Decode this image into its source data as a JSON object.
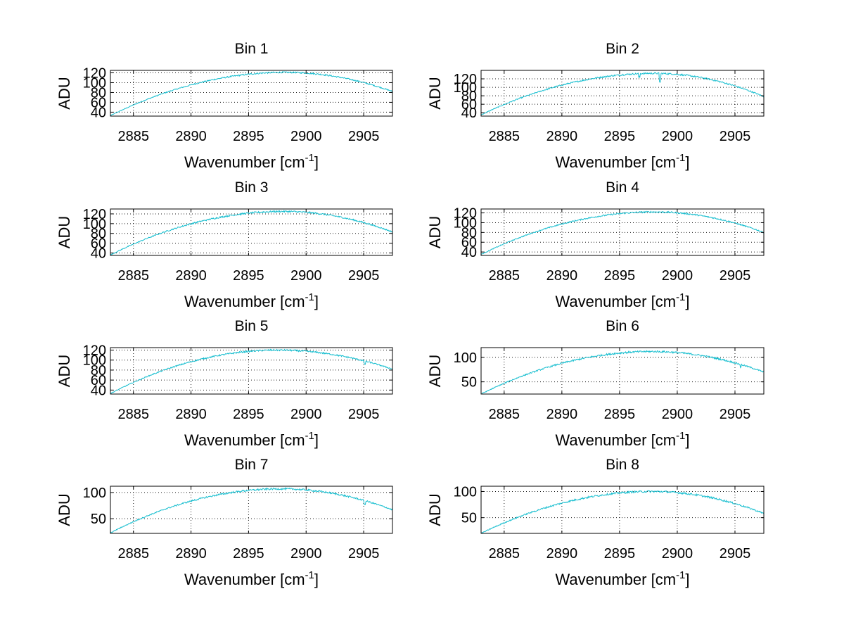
{
  "figure": {
    "xlabel": "Wavenumber [cm",
    "xlabel_sup": "-1",
    "xlabel_close": "]",
    "ylabel": "ADU",
    "line_color": "#17becf"
  },
  "chart_data": [
    {
      "type": "line",
      "title": "Bin 1",
      "xlim": [
        2883,
        2907.5
      ],
      "ylim": [
        32,
        125
      ],
      "xticks": [
        2885,
        2890,
        2895,
        2900,
        2905
      ],
      "yticks": [
        40,
        60,
        80,
        100,
        120
      ],
      "series": [
        {
          "name": "Bin 1",
          "peak_x": 2898.2,
          "peak_y": 121,
          "start_y": 33,
          "end_y": 82,
          "noise": 1.5,
          "dips": []
        }
      ]
    },
    {
      "type": "line",
      "title": "Bin 2",
      "xlim": [
        2883,
        2907.5
      ],
      "ylim": [
        32,
        140
      ],
      "xticks": [
        2885,
        2890,
        2895,
        2900,
        2905
      ],
      "yticks": [
        40,
        60,
        80,
        100,
        120
      ],
      "yticklabels": [
        "40",
        "60",
        "80",
        "100",
        "120"
      ],
      "series": [
        {
          "name": "Bin 2",
          "peak_x": 2898.0,
          "peak_y": 133,
          "start_y": 35,
          "end_y": 78,
          "noise": 2.0,
          "dips": [
            {
              "x": 2898.5,
              "depth": 20
            },
            {
              "x": 2896.7,
              "depth": 8
            }
          ]
        }
      ]
    },
    {
      "type": "line",
      "title": "Bin 3",
      "xlim": [
        2883,
        2907.5
      ],
      "ylim": [
        35,
        130
      ],
      "xticks": [
        2885,
        2890,
        2895,
        2900,
        2905
      ],
      "yticks": [
        40,
        60,
        80,
        100,
        120
      ],
      "series": [
        {
          "name": "Bin 3",
          "peak_x": 2898.0,
          "peak_y": 125,
          "start_y": 36,
          "end_y": 83,
          "noise": 1.8,
          "dips": []
        }
      ]
    },
    {
      "type": "line",
      "title": "Bin 4",
      "xlim": [
        2883,
        2907.5
      ],
      "ylim": [
        33,
        128
      ],
      "xticks": [
        2885,
        2890,
        2895,
        2900,
        2905
      ],
      "yticks": [
        40,
        60,
        80,
        100,
        120
      ],
      "series": [
        {
          "name": "Bin 4",
          "peak_x": 2898.0,
          "peak_y": 122,
          "start_y": 35,
          "end_y": 80,
          "noise": 1.6,
          "dips": []
        }
      ]
    },
    {
      "type": "line",
      "title": "Bin 5",
      "xlim": [
        2883,
        2907.5
      ],
      "ylim": [
        32,
        125
      ],
      "xticks": [
        2885,
        2890,
        2895,
        2900,
        2905
      ],
      "yticks": [
        40,
        60,
        80,
        100,
        120
      ],
      "series": [
        {
          "name": "Bin 5",
          "peak_x": 2897.5,
          "peak_y": 120,
          "start_y": 33,
          "end_y": 82,
          "noise": 1.6,
          "dips": [
            {
              "x": 2905.1,
              "depth": 6
            }
          ]
        }
      ]
    },
    {
      "type": "line",
      "title": "Bin 6",
      "xlim": [
        2883,
        2907.5
      ],
      "ylim": [
        25,
        120
      ],
      "xticks": [
        2885,
        2890,
        2895,
        2900,
        2905
      ],
      "yticks": [
        50,
        100
      ],
      "series": [
        {
          "name": "Bin 6",
          "peak_x": 2897.8,
          "peak_y": 112,
          "start_y": 25,
          "end_y": 70,
          "noise": 2.0,
          "dips": [
            {
              "x": 2905.5,
              "depth": 6
            }
          ]
        }
      ]
    },
    {
      "type": "line",
      "title": "Bin 7",
      "xlim": [
        2883,
        2907.5
      ],
      "ylim": [
        22,
        112
      ],
      "xticks": [
        2885,
        2890,
        2895,
        2900,
        2905
      ],
      "yticks": [
        50,
        100
      ],
      "series": [
        {
          "name": "Bin 7",
          "peak_x": 2897.8,
          "peak_y": 107,
          "start_y": 23,
          "end_y": 67,
          "noise": 1.8,
          "dips": [
            {
              "x": 2905.1,
              "depth": 7
            }
          ]
        }
      ]
    },
    {
      "type": "line",
      "title": "Bin 8",
      "xlim": [
        2883,
        2907.5
      ],
      "ylim": [
        20,
        110
      ],
      "xticks": [
        2885,
        2890,
        2895,
        2900,
        2905
      ],
      "yticks": [
        50,
        100
      ],
      "series": [
        {
          "name": "Bin 8",
          "peak_x": 2897.8,
          "peak_y": 100,
          "start_y": 20,
          "end_y": 58,
          "noise": 2.0,
          "dips": []
        }
      ]
    }
  ]
}
